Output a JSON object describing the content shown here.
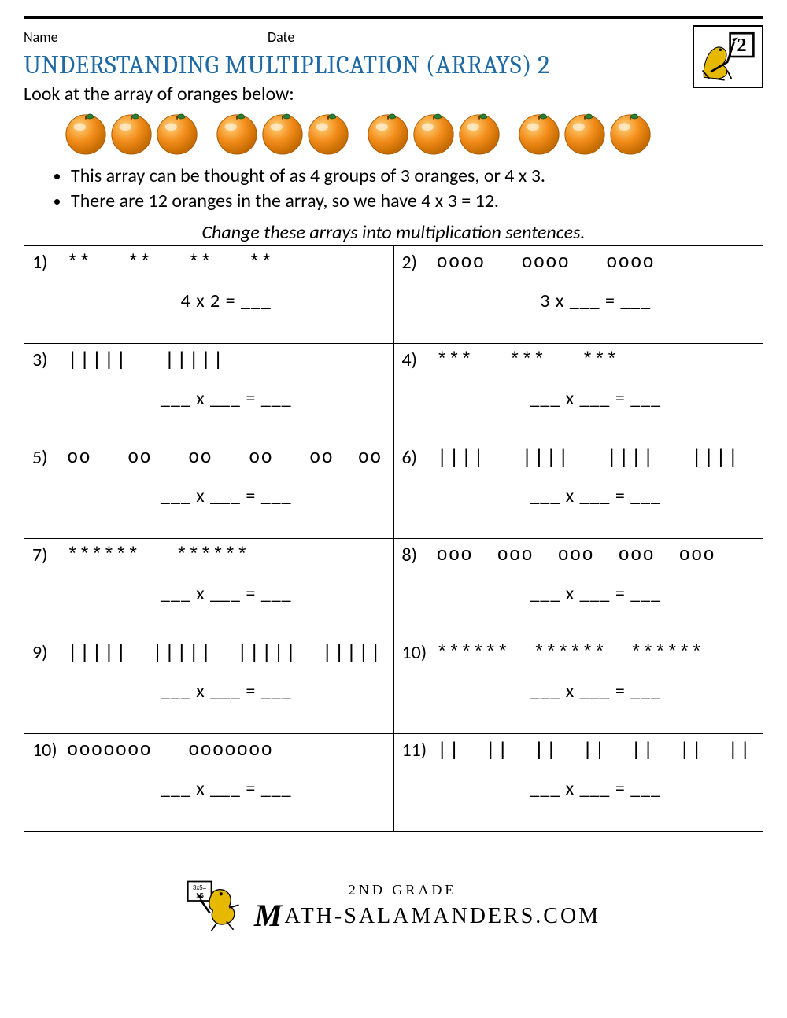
{
  "header": {
    "name_label": "Name",
    "date_label": "Date",
    "grade_badge": "2"
  },
  "title": "UNDERSTANDING MULTIPLICATION (ARRAYS) 2",
  "intro_line": "Look at the array of oranges below:",
  "orange_array": {
    "groups": 4,
    "per_group": 3
  },
  "bullets": [
    "This array can be thought of as 4 groups of 3 oranges, or 4 x 3.",
    "There are 12 oranges in the array, so we have 4 x 3 = 12."
  ],
  "instruction": "Change these arrays into multiplication sentences.",
  "colors": {
    "title": "#1f6aa5",
    "rule": "#000000",
    "orange_fill": "#f28c1a",
    "orange_highlight": "#ffd27a",
    "orange_leaf": "#2e7d32",
    "border": "#000000",
    "text": "#000000",
    "background": "#ffffff",
    "salamander": "#e6b800"
  },
  "problems": [
    {
      "num": "1)",
      "array_text": "**   **   **   **",
      "sentence": "4 x 2 = ___"
    },
    {
      "num": "2)",
      "array_text": "oooo   oooo   oooo",
      "sentence": "3 x ___ = ___"
    },
    {
      "num": "3)",
      "array_text": "|||||   |||||",
      "sentence": "___ x ___ = ___"
    },
    {
      "num": "4)",
      "array_text": "***   ***   ***",
      "sentence": "___ x ___ = ___"
    },
    {
      "num": "5)",
      "array_text": "oo   oo   oo   oo   oo  oo",
      "sentence": "___ x ___ = ___"
    },
    {
      "num": "6)",
      "array_text": "||||   ||||   ||||   ||||",
      "sentence": "___ x ___ = ___"
    },
    {
      "num": "7)",
      "array_text": "******   ******",
      "sentence": "___ x ___ = ___"
    },
    {
      "num": "8)",
      "array_text": "ooo  ooo  ooo  ooo  ooo",
      "sentence": "___ x ___ = ___"
    },
    {
      "num": "9)",
      "array_text": "|||||  |||||  |||||  |||||",
      "sentence": "___ x ___ = ___"
    },
    {
      "num": "10)",
      "array_text": "******  ******  ******",
      "sentence": "___ x ___ = ___"
    },
    {
      "num": "10)",
      "array_text": "ooooooo   ooooooo",
      "sentence": "___ x ___ = ___"
    },
    {
      "num": "11)",
      "array_text": "||  ||  ||  ||  ||  ||  ||",
      "sentence": "___ x ___ = ___"
    }
  ],
  "footer": {
    "line1": "2ND GRADE",
    "line2_prefix_cap": "M",
    "line2_rest": "ATH-SALAMANDERS.COM",
    "card_text": "3x5=\n15"
  }
}
